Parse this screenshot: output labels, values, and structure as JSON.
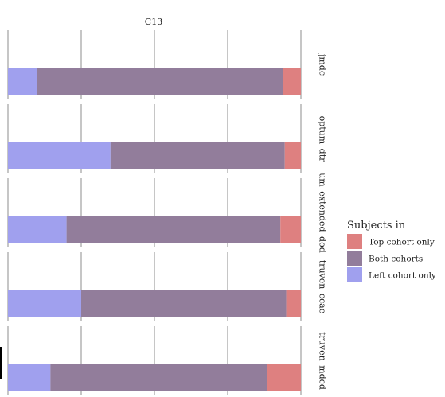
{
  "chart_data": {
    "type": "bar",
    "orientation": "horizontal",
    "stacked": true,
    "title": "C13",
    "categories": [
      "jmdc",
      "optum_dtr",
      "um_extended_dod",
      "truven_ccae",
      "truven_mdcd"
    ],
    "series": [
      {
        "name": "Left cohort only",
        "color": "#a0a0ee",
        "values": [
          0.1,
          0.35,
          0.2,
          0.25,
          0.145
        ]
      },
      {
        "name": "Both cohorts",
        "color": "#927d9b",
        "values": [
          0.84,
          0.595,
          0.73,
          0.7,
          0.74
        ]
      },
      {
        "name": "Top cohort only",
        "color": "#de8080",
        "values": [
          0.06,
          0.055,
          0.07,
          0.05,
          0.115
        ]
      }
    ],
    "xlim": [
      0,
      1
    ],
    "grid": true,
    "legend": {
      "title": "Subjects in",
      "position": "right",
      "entries": [
        "Top cohort only",
        "Both cohorts",
        "Left cohort only"
      ]
    }
  }
}
